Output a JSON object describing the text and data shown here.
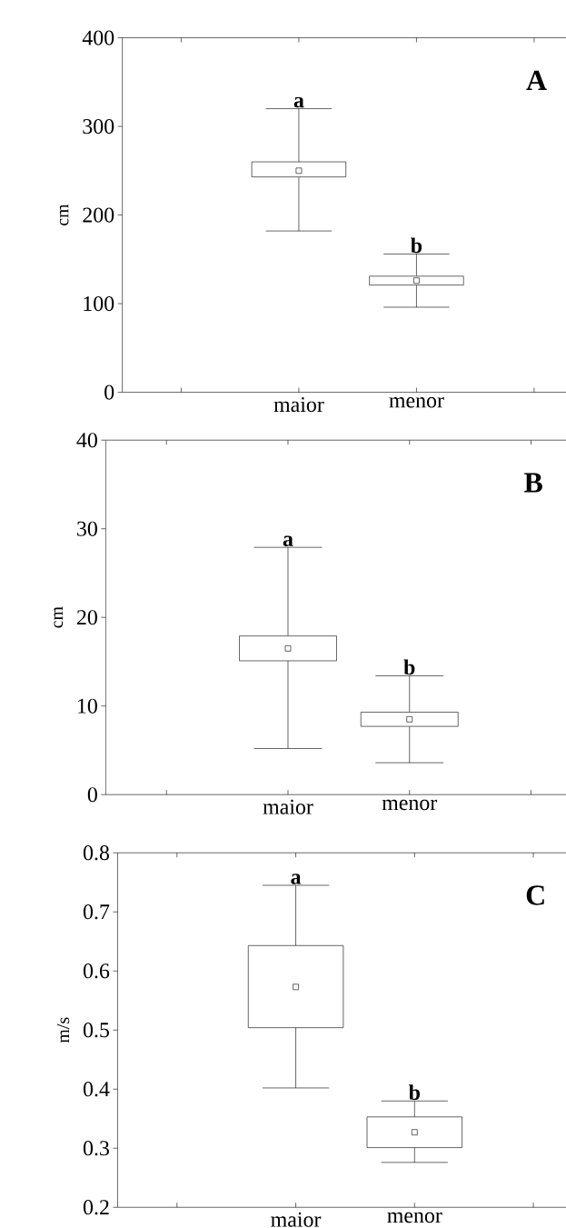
{
  "chart_data": [
    {
      "type": "box",
      "title": "A",
      "ylabel": "cm",
      "categories": [
        null,
        "maior",
        "menor",
        null
      ],
      "boxes": [
        null,
        {
          "low": 182,
          "q1": 243,
          "median": 250,
          "q3": 260,
          "high": 320
        },
        {
          "low": 96,
          "q1": 121,
          "median": 126,
          "q3": 131,
          "high": 156
        },
        null
      ],
      "ylim": [
        0,
        400
      ],
      "yticks": [
        0,
        100,
        200,
        300,
        400
      ],
      "annotations": [
        {
          "text": "a",
          "x": "maior",
          "y": 320
        },
        {
          "text": "b",
          "x": "menor",
          "y": 156
        }
      ]
    },
    {
      "type": "box",
      "title": "B",
      "ylabel": "cm",
      "categories": [
        null,
        "maior",
        "menor",
        null
      ],
      "boxes": [
        null,
        {
          "low": 5.2,
          "q1": 15.1,
          "median": 16.5,
          "q3": 17.9,
          "high": 27.9
        },
        {
          "low": 3.6,
          "q1": 7.7,
          "median": 8.5,
          "q3": 9.3,
          "high": 13.4
        },
        null
      ],
      "ylim": [
        0,
        40
      ],
      "yticks": [
        0,
        10,
        20,
        30,
        40
      ],
      "annotations": [
        {
          "text": "a",
          "x": "maior",
          "y": 27.9
        },
        {
          "text": "b",
          "x": "menor",
          "y": 13.4
        }
      ]
    },
    {
      "type": "box",
      "title": "C",
      "ylabel": "m/s",
      "categories": [
        null,
        "maior",
        "menor",
        null
      ],
      "boxes": [
        null,
        {
          "low": 0.402,
          "q1": 0.504,
          "median": 0.573,
          "q3": 0.643,
          "high": 0.745
        },
        {
          "low": 0.276,
          "q1": 0.301,
          "median": 0.327,
          "q3": 0.353,
          "high": 0.38
        },
        null
      ],
      "ylim": [
        0.2,
        0.8
      ],
      "yticks": [
        0.2,
        0.3,
        0.4,
        0.5,
        0.6,
        0.7,
        0.8
      ],
      "annotations": [
        {
          "text": "a",
          "x": "maior",
          "y": 0.745
        },
        {
          "text": "b",
          "x": "menor",
          "y": 0.38
        }
      ]
    }
  ]
}
